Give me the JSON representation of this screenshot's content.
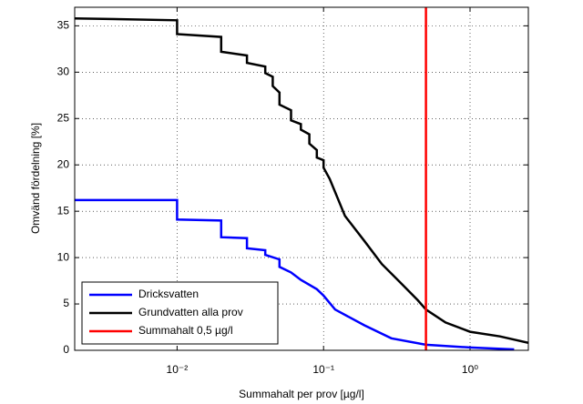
{
  "chart_data": {
    "type": "line",
    "xlabel": "Summahalt per prov [µg/l]",
    "ylabel": "Omvänd fördelning [%]",
    "xscale": "log",
    "xlim": [
      0.002,
      2.5
    ],
    "ylim": [
      0,
      37
    ],
    "xticks": [
      {
        "value": 0.01,
        "label": "10⁻²"
      },
      {
        "value": 0.1,
        "label": "10⁻¹"
      },
      {
        "value": 1,
        "label": "10⁰"
      }
    ],
    "yticks": [
      0,
      5,
      10,
      15,
      20,
      25,
      30,
      35
    ],
    "grid": true,
    "legend": "lower left",
    "series": [
      {
        "name": "Dricksvatten",
        "color": "#0000ff",
        "x": [
          0.002,
          0.01,
          0.01,
          0.02,
          0.02,
          0.03,
          0.03,
          0.04,
          0.04,
          0.05,
          0.05,
          0.06,
          0.07,
          0.09,
          0.1,
          0.12,
          0.19,
          0.29,
          0.5,
          1,
          2
        ],
        "values": [
          16.2,
          16.2,
          14.1,
          14.0,
          12.2,
          12.1,
          11.0,
          10.8,
          10.3,
          9.8,
          9.0,
          8.4,
          7.6,
          6.6,
          5.9,
          4.4,
          2.7,
          1.3,
          0.6,
          0.3,
          0.1
        ]
      },
      {
        "name": "Grundvatten alla prov",
        "color": "#000000",
        "x": [
          0.002,
          0.01,
          0.01,
          0.02,
          0.02,
          0.03,
          0.03,
          0.04,
          0.04,
          0.045,
          0.045,
          0.05,
          0.05,
          0.06,
          0.06,
          0.07,
          0.07,
          0.08,
          0.08,
          0.09,
          0.09,
          0.1,
          0.1,
          0.11,
          0.14,
          0.19,
          0.25,
          0.33,
          0.44,
          0.5,
          0.68,
          1,
          1.6,
          2.5
        ],
        "values": [
          35.8,
          35.6,
          34.1,
          33.8,
          32.2,
          31.8,
          31.0,
          30.6,
          29.9,
          29.5,
          28.5,
          27.8,
          26.5,
          25.9,
          24.8,
          24.4,
          23.8,
          23.3,
          22.3,
          21.6,
          20.8,
          20.5,
          19.7,
          18.5,
          14.5,
          11.8,
          9.3,
          7.4,
          5.4,
          4.4,
          3.0,
          2.0,
          1.5,
          0.8
        ]
      },
      {
        "name": "Summahalt 0,5 µg/l",
        "color": "#ff0000",
        "x": [
          0.5,
          0.5
        ],
        "values": [
          0,
          37
        ]
      }
    ]
  }
}
